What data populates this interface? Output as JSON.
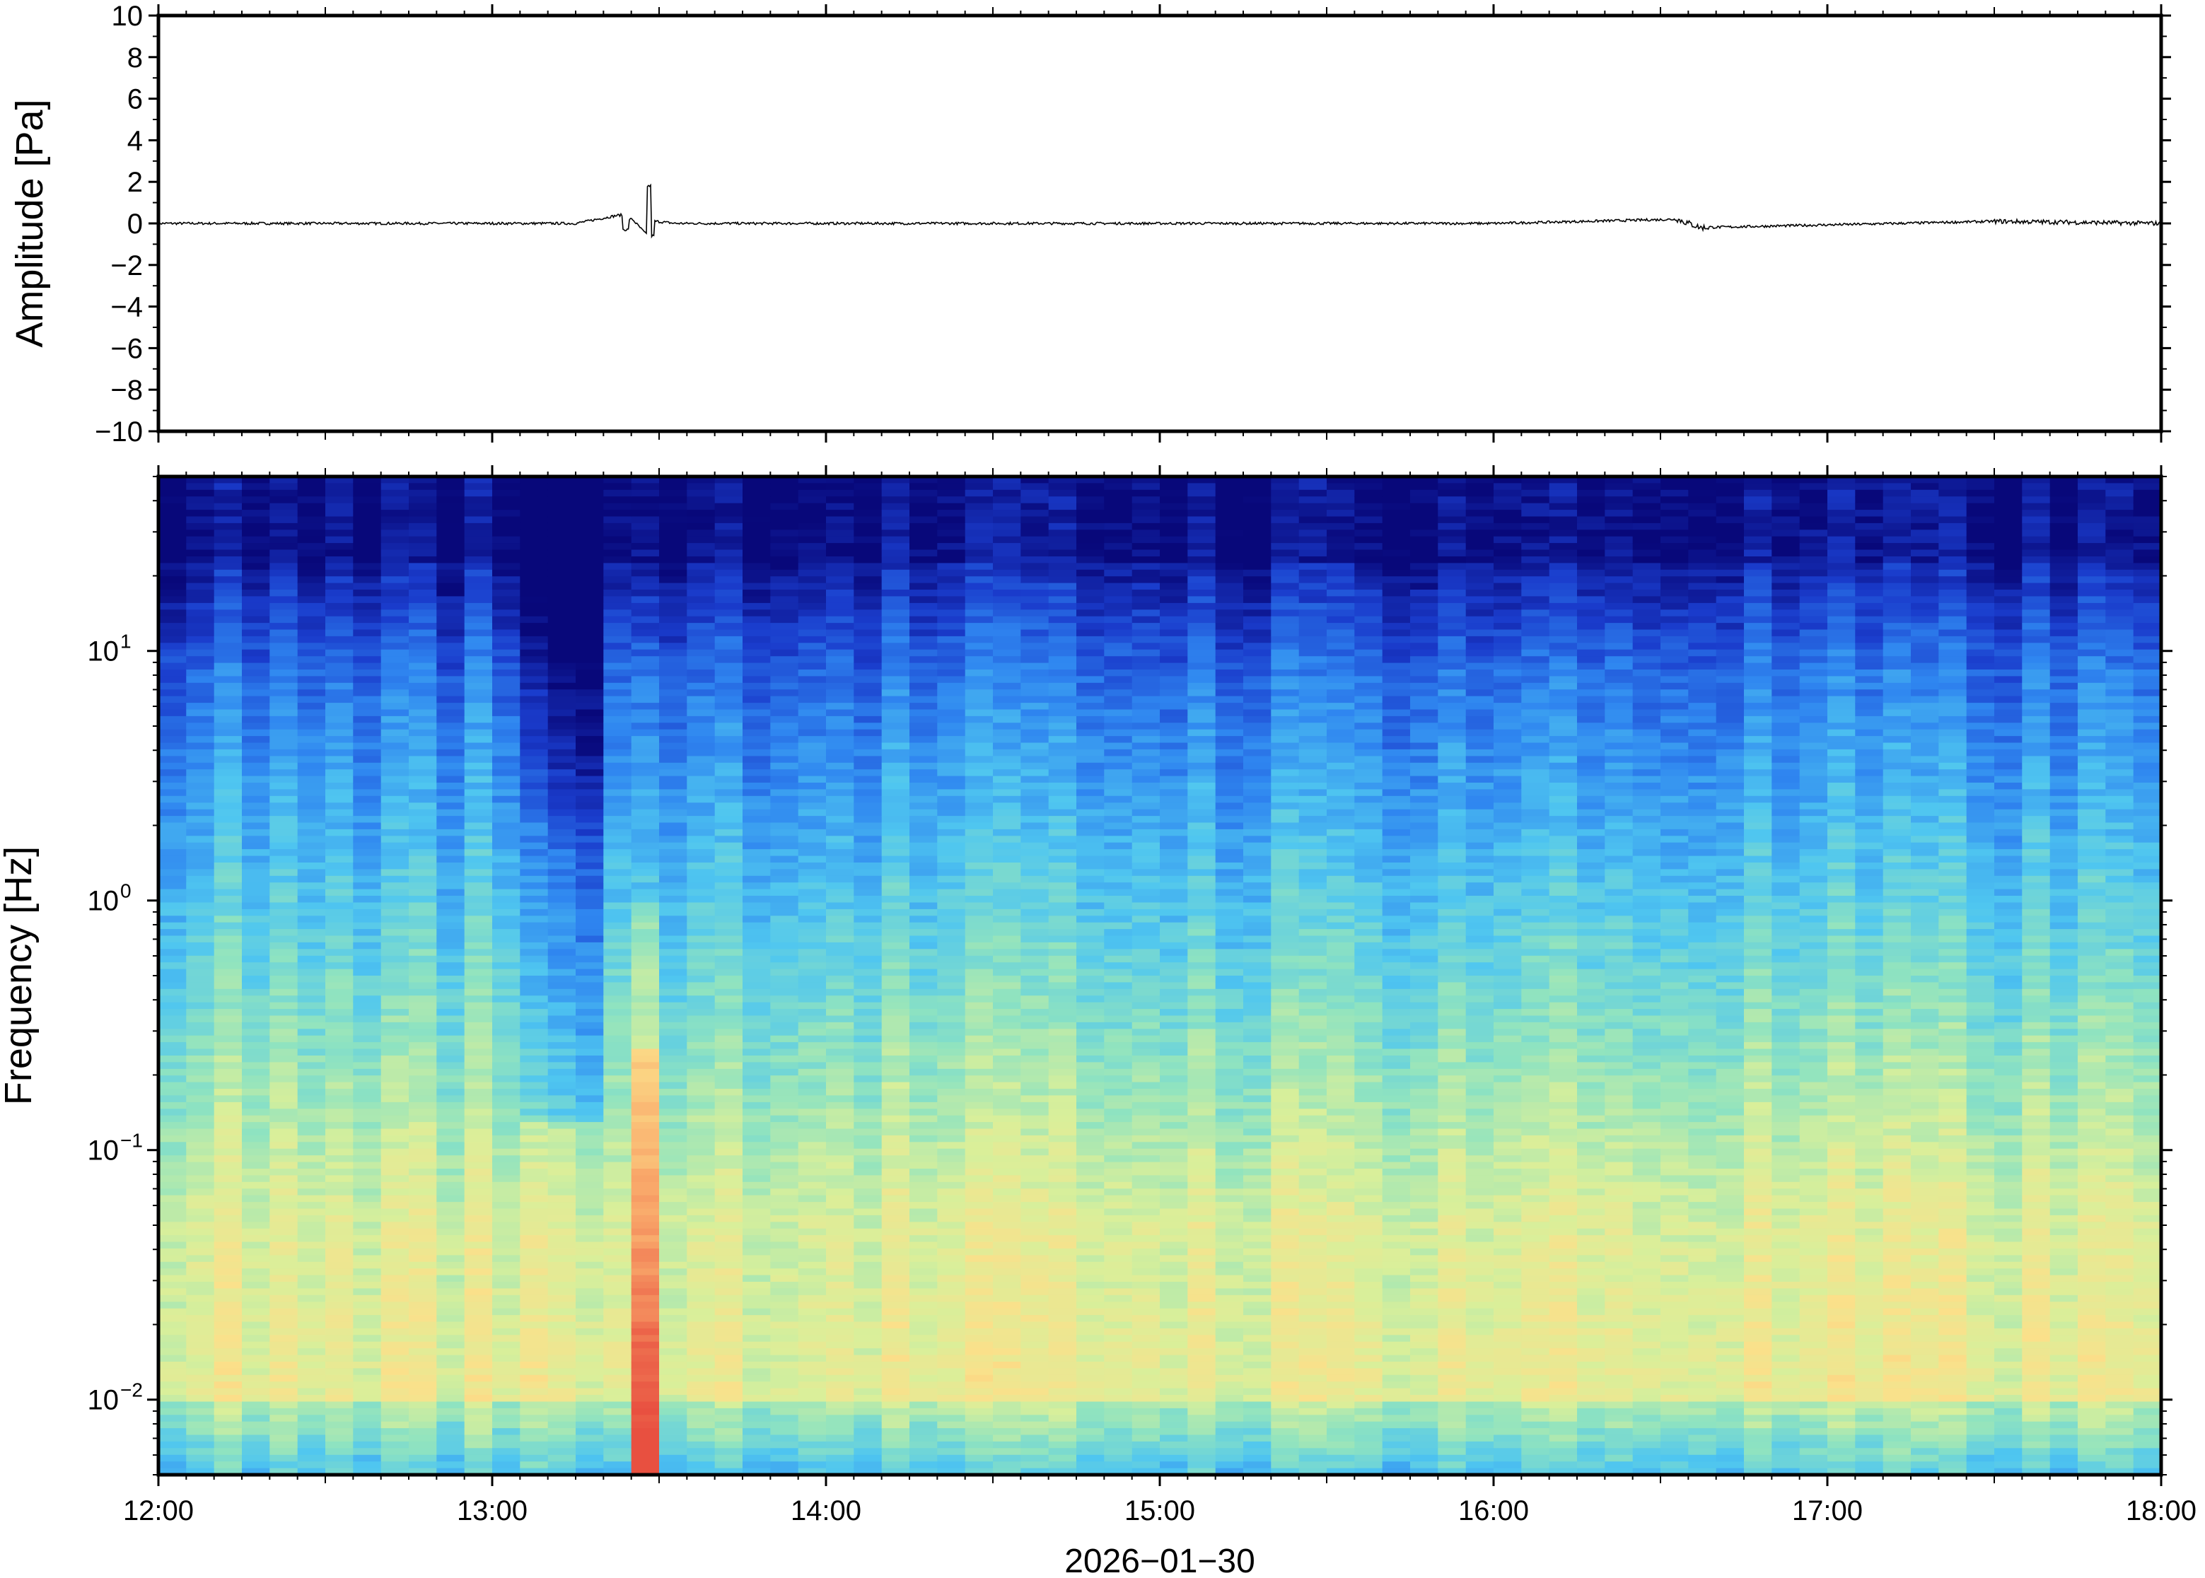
{
  "chart_data": [
    {
      "type": "line",
      "ylabel": "Amplitude [Pa]",
      "ylim": [
        -10,
        10
      ],
      "yticks": [
        "10",
        "8",
        "6",
        "4",
        "2",
        "0",
        "−2",
        "−4",
        "−6",
        "−8",
        "−10"
      ],
      "x_range_hours": [
        12,
        18
      ],
      "series": [
        {
          "x": [
            12.0,
            13.25,
            13.38,
            13.4,
            13.42,
            13.46,
            13.47,
            13.48,
            13.49,
            13.55,
            14.5,
            16.0,
            16.55,
            16.62,
            17.5,
            18.0
          ],
          "values": [
            0.0,
            0.0,
            0.4,
            -0.3,
            0.2,
            -0.5,
            1.8,
            -0.6,
            0.1,
            0.0,
            0.0,
            0.0,
            0.2,
            -0.2,
            0.1,
            0.0
          ]
        }
      ]
    },
    {
      "type": "heatmap",
      "ylabel": "Frequency [Hz]",
      "yscale": "log",
      "ylim": [
        0.005,
        50
      ],
      "yticks": [
        {
          "value": 10,
          "base": "10",
          "exp": "1"
        },
        {
          "value": 1,
          "base": "10",
          "exp": "0"
        },
        {
          "value": 0.1,
          "base": "10",
          "exp": "−1"
        },
        {
          "value": 0.01,
          "base": "10",
          "exp": "−2"
        }
      ],
      "xlabel": "2026−01−30",
      "xticks": [
        "12:00",
        "13:00",
        "14:00",
        "15:00",
        "16:00",
        "17:00",
        "18:00"
      ],
      "x_range_hours": [
        12,
        18
      ],
      "colormap": [
        "#08087a",
        "#1a3ccc",
        "#2f86f0",
        "#4fc6f0",
        "#8fe3c0",
        "#d9ef9a",
        "#fbe08a",
        "#f9a86a",
        "#e85040"
      ],
      "quiet_interval_hours": [
        13.1,
        13.3
      ],
      "event_interval_hours": [
        13.38,
        13.52
      ]
    }
  ]
}
